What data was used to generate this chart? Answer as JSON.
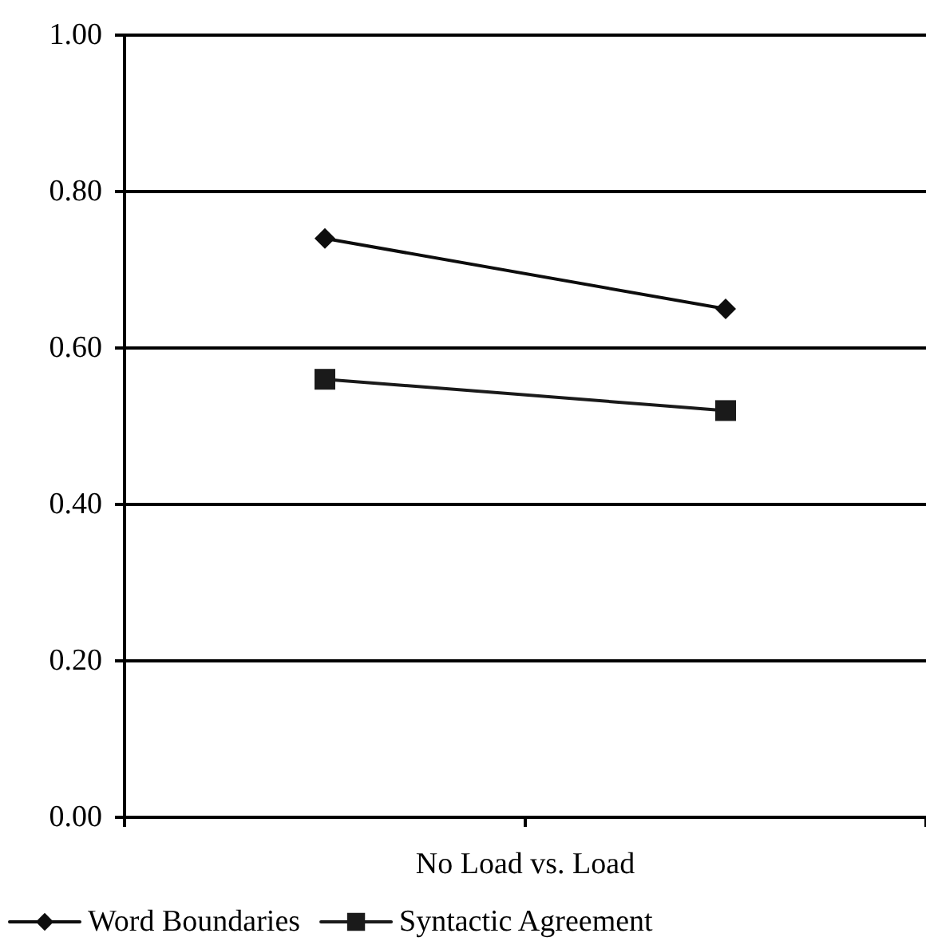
{
  "chart_data": {
    "type": "line",
    "categories": [
      null,
      null
    ],
    "xlabel": "No Load vs. Load",
    "series": [
      {
        "name": "Word Boundaries",
        "color": "#0d0d0d",
        "marker": "diamond",
        "values": [
          0.74,
          0.65
        ]
      },
      {
        "name": "Syntactic Agreement",
        "color": "#1a1a1a",
        "marker": "square",
        "values": [
          0.56,
          0.52
        ]
      }
    ],
    "ylim": [
      0,
      1
    ],
    "yticks": [
      {
        "value": 0,
        "label": "0.00"
      },
      {
        "value": 0.2,
        "label": "0.20"
      },
      {
        "value": 0.4,
        "label": "0.40"
      },
      {
        "value": 0.6,
        "label": "0.60"
      },
      {
        "value": 0.8,
        "label": "0.80"
      },
      {
        "value": 1,
        "label": "1.00"
      }
    ],
    "grid": "y",
    "legend": "bottom",
    "line_style": "solid"
  }
}
